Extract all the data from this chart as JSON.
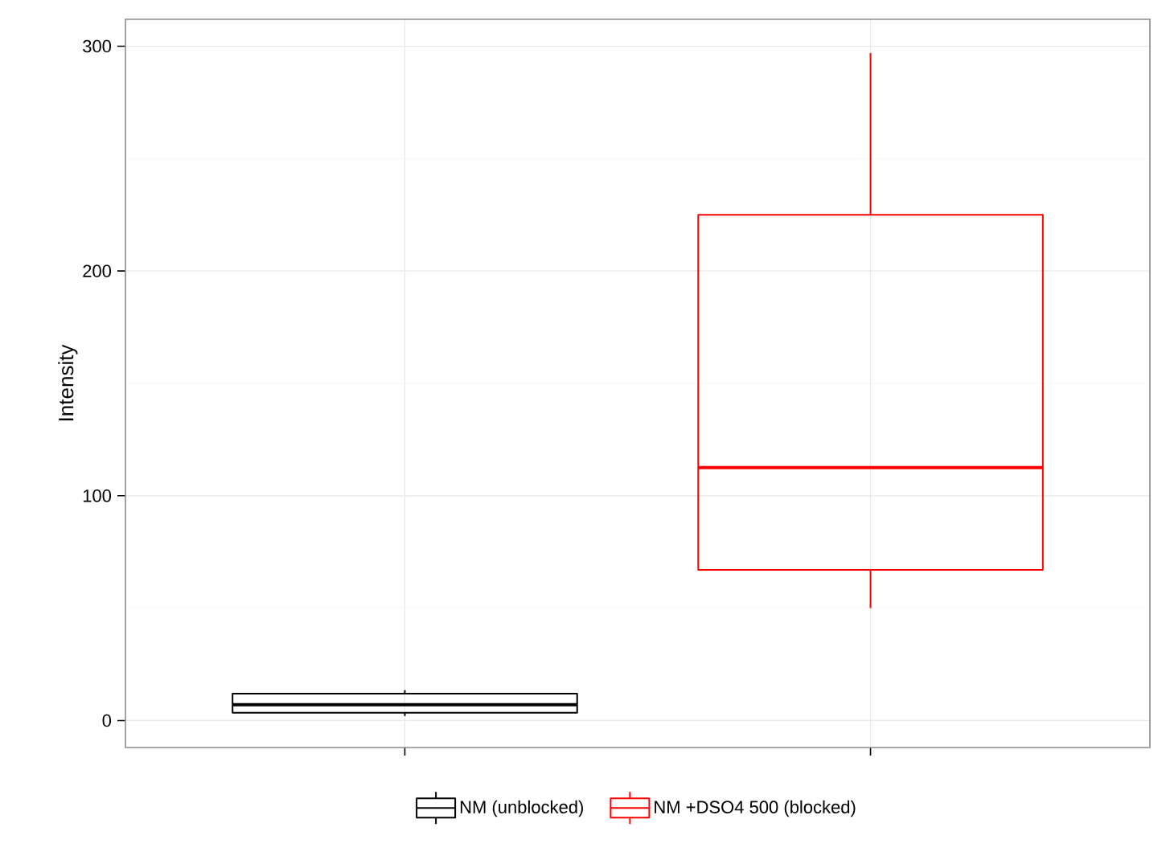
{
  "chart_data": {
    "type": "box",
    "ylabel": "Intensity",
    "categories": [
      null,
      null
    ],
    "series": [
      {
        "name": "NM (unblocked)",
        "color": "#000000",
        "boxes": [
          {
            "low": 2,
            "q1": 3.5,
            "median": 7,
            "q3": 12,
            "high": 13.5
          },
          null
        ]
      },
      {
        "name": "NM +DSO4 500 (blocked)",
        "color": "#ff0000",
        "boxes": [
          null,
          {
            "low": 50,
            "q1": 67,
            "median": 112.5,
            "q3": 225,
            "high": 297
          }
        ]
      }
    ],
    "ylim": [
      -12,
      312
    ],
    "yticks": [
      0,
      100,
      200,
      300
    ],
    "grid": true,
    "legend": "bottom",
    "tick_labels": "y"
  }
}
